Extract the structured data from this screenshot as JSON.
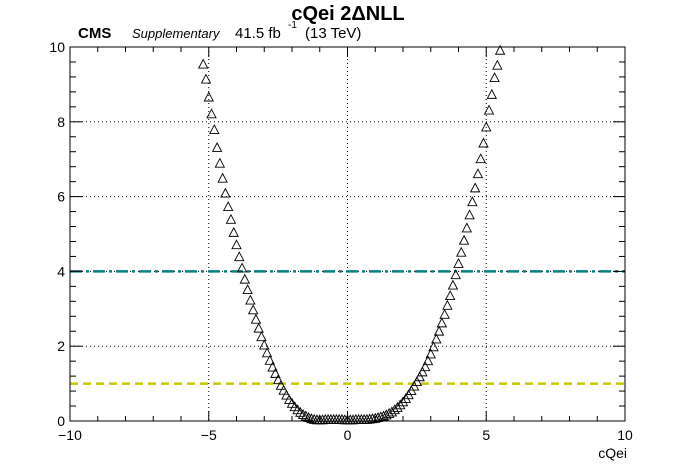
{
  "header": {
    "experiment": "CMS",
    "tag": "Supplementary",
    "lumi_value": "41.5 fb",
    "lumi_exponent": "-1",
    "energy": "(13 TeV)"
  },
  "chart_data": {
    "type": "scatter",
    "title": "cQei 2ΔNLL",
    "xlabel": "cQei",
    "ylabel": "",
    "xlim": [
      -10,
      10
    ],
    "ylim": [
      0,
      10
    ],
    "xticks": [
      -10,
      -5,
      0,
      5,
      10
    ],
    "yticks": [
      0,
      2,
      4,
      6,
      8,
      10
    ],
    "xtick_labels": [
      "−10",
      "−5",
      "0",
      "5",
      "10"
    ],
    "ytick_labels": [
      "0",
      "2",
      "4",
      "6",
      "8",
      "10"
    ],
    "grid": true,
    "marker": "open-triangle",
    "colors": {
      "marker": "#000000",
      "line_1sigma": "#c8c800",
      "line_2sigma": "#008080"
    },
    "reference_lines": [
      {
        "y": 1,
        "style": "dashed",
        "color": "#c8c800"
      },
      {
        "y": 4,
        "style": "dash-dot",
        "color": "#008080"
      }
    ],
    "series": [
      {
        "x": [
          -5.2,
          -5.1,
          -5.0,
          -4.9,
          -4.8,
          -4.7,
          -4.6,
          -4.5,
          -4.4,
          -4.3,
          -4.2,
          -4.1,
          -4.0,
          -3.9,
          -3.8,
          -3.7,
          -3.6,
          -3.5,
          -3.4,
          -3.3,
          -3.2,
          -3.1,
          -3.0,
          -2.9,
          -2.8,
          -2.7,
          -2.6,
          -2.5,
          -2.4,
          -2.3,
          -2.2,
          -2.1,
          -2.0,
          -1.9,
          -1.8,
          -1.7,
          -1.6,
          -1.5,
          -1.4,
          -1.3,
          -1.2,
          -1.1,
          -1.0,
          -0.9,
          -0.8,
          -0.7,
          -0.6,
          -0.5,
          -0.4,
          -0.3,
          -0.2,
          -0.1,
          0.0,
          0.1,
          0.2,
          0.3,
          0.4,
          0.5,
          0.6,
          0.7,
          0.8,
          0.9,
          1.0,
          1.1,
          1.2,
          1.3,
          1.4,
          1.5,
          1.6,
          1.7,
          1.8,
          1.9,
          2.0,
          2.1,
          2.2,
          2.3,
          2.4,
          2.5,
          2.6,
          2.7,
          2.8,
          2.9,
          3.0,
          3.1,
          3.2,
          3.3,
          3.4,
          3.5,
          3.6,
          3.7,
          3.8,
          3.9,
          4.0,
          4.1,
          4.2,
          4.3,
          4.4,
          4.5,
          4.6,
          4.7,
          4.8,
          4.9,
          5.0,
          5.1,
          5.2,
          5.3,
          5.4,
          5.5
        ],
        "y": [
          9.53,
          9.13,
          8.65,
          8.2,
          7.78,
          7.3,
          6.88,
          6.48,
          6.08,
          5.72,
          5.38,
          5.03,
          4.7,
          4.38,
          4.08,
          3.78,
          3.5,
          3.22,
          2.96,
          2.71,
          2.47,
          2.24,
          2.02,
          1.81,
          1.61,
          1.43,
          1.26,
          1.09,
          0.94,
          0.81,
          0.68,
          0.56,
          0.46,
          0.37,
          0.29,
          0.22,
          0.16,
          0.12,
          0.08,
          0.05,
          0.03,
          0.02,
          0.02,
          0.02,
          0.03,
          0.03,
          0.03,
          0.03,
          0.03,
          0.03,
          0.03,
          0.02,
          0.02,
          0.02,
          0.02,
          0.03,
          0.03,
          0.03,
          0.03,
          0.03,
          0.04,
          0.05,
          0.06,
          0.08,
          0.1,
          0.12,
          0.15,
          0.19,
          0.23,
          0.29,
          0.35,
          0.42,
          0.5,
          0.59,
          0.69,
          0.8,
          0.92,
          1.04,
          1.17,
          1.3,
          1.44,
          1.6,
          1.78,
          1.97,
          2.18,
          2.39,
          2.61,
          2.84,
          3.08,
          3.34,
          3.62,
          3.9,
          4.2,
          4.5,
          4.82,
          5.15,
          5.5,
          5.85,
          6.22,
          6.6,
          7.0,
          7.42,
          7.85,
          8.3,
          8.72,
          9.17,
          9.5,
          9.9
        ]
      }
    ]
  }
}
